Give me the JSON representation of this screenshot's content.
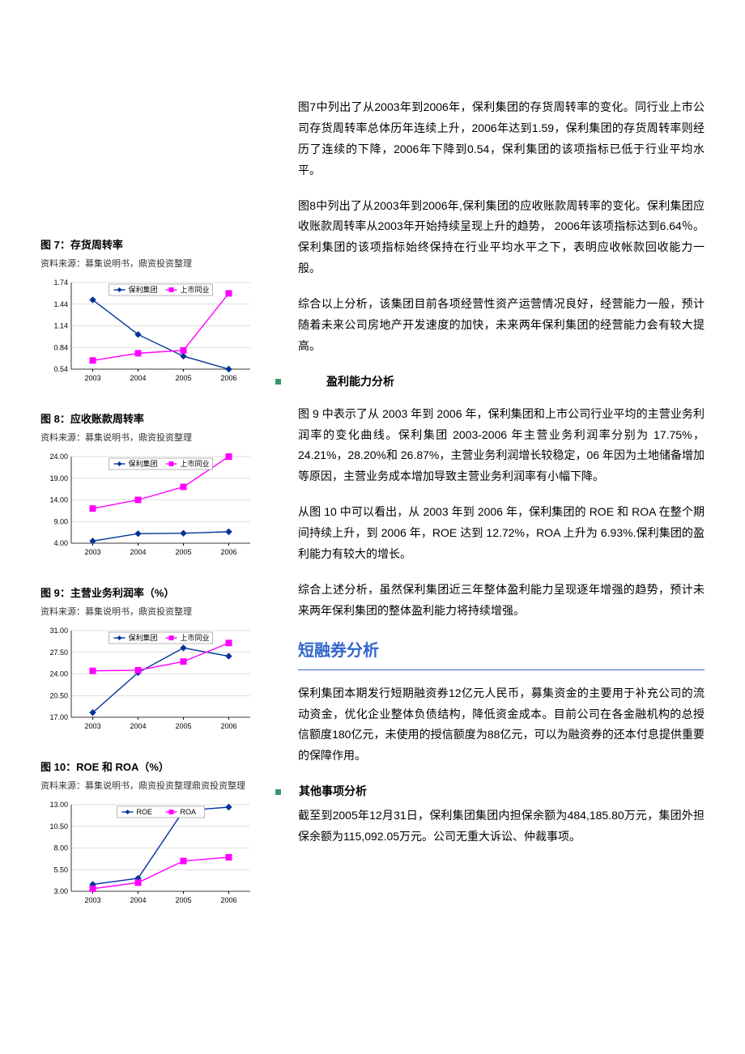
{
  "figures": {
    "fig7": {
      "title": "图 7：存货周转率",
      "source": "资料来源：募集说明书，鼎资投资整理",
      "type": "line",
      "categories": [
        "2003",
        "2004",
        "2005",
        "2006"
      ],
      "series": [
        {
          "name": "保利集团",
          "color": "#003399",
          "marker": "diamond",
          "values": [
            1.5,
            1.02,
            0.72,
            0.54
          ]
        },
        {
          "name": "上市同业",
          "color": "#ff00ff",
          "marker": "square",
          "values": [
            0.66,
            0.76,
            0.8,
            1.59
          ]
        }
      ],
      "ylim": [
        0.54,
        1.74
      ],
      "ytick_step": 0.3,
      "grid_color": "#c0c0c0",
      "axis_fontsize": 9
    },
    "fig8": {
      "title": "图 8：应收账款周转率",
      "source": "资料来源：募集说明书，鼎资投资整理",
      "type": "line",
      "categories": [
        "2003",
        "2004",
        "2005",
        "2006"
      ],
      "series": [
        {
          "name": "保利集团",
          "color": "#003399",
          "marker": "diamond",
          "values": [
            4.5,
            6.2,
            6.3,
            6.64
          ]
        },
        {
          "name": "上市同业",
          "color": "#ff00ff",
          "marker": "square",
          "values": [
            12.0,
            14.0,
            17.0,
            24.0
          ]
        }
      ],
      "ylim": [
        4.0,
        24.0
      ],
      "ytick_step": 5.0,
      "grid_color": "#c0c0c0",
      "axis_fontsize": 9
    },
    "fig9": {
      "title": "图 9：主营业务利润率（%）",
      "source": "资料来源：募集说明书，鼎资投资整理",
      "type": "line",
      "categories": [
        "2003",
        "2004",
        "2005",
        "2006"
      ],
      "series": [
        {
          "name": "保利集团",
          "color": "#003399",
          "marker": "diamond",
          "values": [
            17.75,
            24.21,
            28.2,
            26.87
          ]
        },
        {
          "name": "上市同业",
          "color": "#ff00ff",
          "marker": "square",
          "values": [
            24.5,
            24.6,
            26.0,
            29.0
          ]
        }
      ],
      "ylim": [
        17.0,
        31.0
      ],
      "ytick_step": 3.5,
      "grid_color": "#c0c0c0",
      "axis_fontsize": 9
    },
    "fig10": {
      "title": "图 10：ROE 和 ROA（%）",
      "source": "资料来源：募集说明书，鼎资投资整理鼎资投资整理",
      "type": "line",
      "categories": [
        "2003",
        "2004",
        "2005",
        "2006"
      ],
      "series": [
        {
          "name": "ROE",
          "color": "#003399",
          "marker": "diamond",
          "values": [
            3.8,
            4.5,
            12.3,
            12.72
          ]
        },
        {
          "name": "ROA",
          "color": "#ff00ff",
          "marker": "square",
          "values": [
            3.3,
            4.0,
            6.5,
            6.93
          ]
        }
      ],
      "ylim": [
        3.0,
        13.0
      ],
      "ytick_step": 2.5,
      "grid_color": "#c0c0c0",
      "axis_fontsize": 9
    }
  },
  "body": {
    "p1": "图7中列出了从2003年到2006年，保利集团的存货周转率的变化。同行业上市公司存货周转率总体历年连续上升，2006年达到1.59，保利集团的存货周转率则经历了连续的下降，2006年下降到0.54，保利集团的该项指标已低于行业平均水平。",
    "p2": "图8中列出了从2003年到2006年,保利集团的应收账款周转率的变化。保利集团应收账款周转率从2003年开始持续呈现上升的趋势，  2006年该项指标达到6.64％。保利集团的该项指标始终保持在行业平均水平之下，表明应收帐款回收能力一般。",
    "p3": "综合以上分析，该集团目前各项经营性资产运营情况良好，经营能力一般，预计随着未来公司房地产开发速度的加快，未来两年保利集团的经营能力会有较大提高。",
    "sec1": "盈利能力分析",
    "p4": "图 9 中表示了从 2003 年到 2006 年，保利集团和上市公司行业平均的主营业务利润率的变化曲线。保利集团 2003-2006 年主营业务利润率分别为 17.75%，24.21%，28.20%和 26.87%，主营业务利润增长较稳定，06 年因为土地储备增加等原因，主营业务成本增加导致主营业务利润率有小幅下降。",
    "p5": "从图 10 中可以看出，从 2003 年到 2006 年，保利集团的 ROE 和 ROA 在整个期间持续上升，到 2006 年，ROE 达到 12.72%，ROA 上升为 6.93%.保利集团的盈利能力有较大的增长。",
    "p6": "综合上述分析，虽然保利集团近三年整体盈利能力呈现逐年增强的趋势，预计未来两年保利集团的整体盈利能力将持续增强。",
    "h2": "短融券分析",
    "p7": "保利集团本期发行短期融资券12亿元人民币，募集资金的主要用于补充公司的流动资金，优化企业整体负债结构，降低资金成本。目前公司在各金融机构的总授信额度180亿元，未使用的授信额度为88亿元，可以为融资券的还本付息提供重要的保障作用。",
    "sec2": "其他事项分析",
    "p8": "截至到2005年12月31日，保利集团集团内担保余额为484,185.80万元，集团外担保余额为115,092.05万元。公司无重大诉讼、仲裁事项。"
  }
}
